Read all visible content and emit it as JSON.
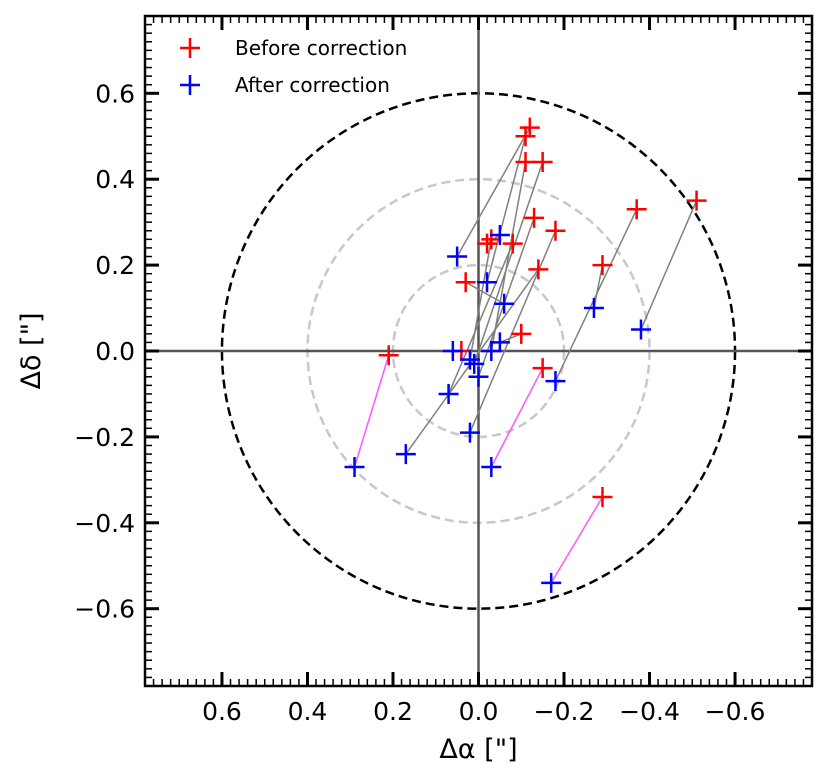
{
  "chart_data": {
    "type": "scatter",
    "xlabel": "Δα [\"]",
    "ylabel": "Δδ [\"]",
    "x_inverted": true,
    "xlim": [
      0.78,
      -0.78
    ],
    "ylim": [
      -0.78,
      0.78
    ],
    "x_ticks": [
      {
        "value": 0.6,
        "label": "0.6"
      },
      {
        "value": 0.4,
        "label": "0.4"
      },
      {
        "value": 0.2,
        "label": "0.2"
      },
      {
        "value": 0.0,
        "label": "0.0"
      },
      {
        "value": -0.2,
        "label": "−0.2"
      },
      {
        "value": -0.4,
        "label": "−0.4"
      },
      {
        "value": -0.6,
        "label": "−0.6"
      }
    ],
    "y_ticks": [
      {
        "value": 0.6,
        "label": "0.6"
      },
      {
        "value": 0.4,
        "label": "0.4"
      },
      {
        "value": 0.2,
        "label": "0.2"
      },
      {
        "value": 0.0,
        "label": "0.0"
      },
      {
        "value": -0.2,
        "label": "−0.2"
      },
      {
        "value": -0.4,
        "label": "−0.4"
      },
      {
        "value": -0.6,
        "label": "−0.6"
      }
    ],
    "circles": [
      {
        "radius": 0.6,
        "color": "#000000",
        "style": "dashed"
      },
      {
        "radius": 0.4,
        "color": "#c8c8c8",
        "style": "dashed"
      },
      {
        "radius": 0.2,
        "color": "#c8c8c8",
        "style": "dashed"
      }
    ],
    "legend": [
      {
        "label": "Before correction",
        "color": "#ff0000"
      },
      {
        "label": "After correction",
        "color": "#0000ff"
      }
    ],
    "series": [
      {
        "name": "Before correction",
        "color": "#ff0000",
        "points": [
          {
            "x": -0.12,
            "y": 0.52
          },
          {
            "x": -0.11,
            "y": 0.5
          },
          {
            "x": -0.11,
            "y": 0.44
          },
          {
            "x": -0.15,
            "y": 0.44
          },
          {
            "x": -0.13,
            "y": 0.31
          },
          {
            "x": -0.18,
            "y": 0.28
          },
          {
            "x": -0.14,
            "y": 0.19
          },
          {
            "x": -0.08,
            "y": 0.25
          },
          {
            "x": -0.03,
            "y": 0.26
          },
          {
            "x": -0.02,
            "y": 0.25
          },
          {
            "x": 0.03,
            "y": 0.16
          },
          {
            "x": -0.1,
            "y": 0.04
          },
          {
            "x": 0.04,
            "y": 0.0
          },
          {
            "x": -0.15,
            "y": -0.04
          },
          {
            "x": 0.21,
            "y": -0.01
          },
          {
            "x": -0.37,
            "y": 0.33
          },
          {
            "x": -0.51,
            "y": 0.35
          },
          {
            "x": -0.29,
            "y": 0.2
          },
          {
            "x": -0.29,
            "y": -0.34
          }
        ]
      },
      {
        "name": "After correction",
        "color": "#0000ff",
        "points": [
          {
            "x": 0.05,
            "y": 0.22
          },
          {
            "x": -0.05,
            "y": 0.27
          },
          {
            "x": -0.02,
            "y": 0.16
          },
          {
            "x": -0.06,
            "y": 0.11
          },
          {
            "x": -0.05,
            "y": 0.02
          },
          {
            "x": -0.03,
            "y": 0.0
          },
          {
            "x": 0.06,
            "y": 0.0
          },
          {
            "x": 0.02,
            "y": -0.02
          },
          {
            "x": 0.01,
            "y": -0.03
          },
          {
            "x": 0.0,
            "y": -0.06
          },
          {
            "x": 0.07,
            "y": -0.1
          },
          {
            "x": 0.02,
            "y": -0.19
          },
          {
            "x": -0.03,
            "y": -0.27
          },
          {
            "x": 0.17,
            "y": -0.24
          },
          {
            "x": 0.29,
            "y": -0.27
          },
          {
            "x": -0.18,
            "y": -0.07
          },
          {
            "x": -0.27,
            "y": 0.1
          },
          {
            "x": -0.38,
            "y": 0.05
          },
          {
            "x": -0.17,
            "y": -0.54
          }
        ]
      }
    ],
    "connectors": [
      {
        "from": [
          -0.12,
          0.52
        ],
        "to": [
          0.05,
          0.22
        ],
        "color": "#808080"
      },
      {
        "from": [
          -0.11,
          0.5
        ],
        "to": [
          -0.02,
          0.16
        ],
        "color": "#808080"
      },
      {
        "from": [
          -0.11,
          0.44
        ],
        "to": [
          -0.03,
          0.0
        ],
        "color": "#808080"
      },
      {
        "from": [
          -0.15,
          0.44
        ],
        "to": [
          0.01,
          -0.03
        ],
        "color": "#808080"
      },
      {
        "from": [
          -0.13,
          0.31
        ],
        "to": [
          0.0,
          -0.06
        ],
        "color": "#808080"
      },
      {
        "from": [
          -0.18,
          0.28
        ],
        "to": [
          0.02,
          -0.19
        ],
        "color": "#808080"
      },
      {
        "from": [
          -0.14,
          0.19
        ],
        "to": [
          0.17,
          -0.24
        ],
        "color": "#808080"
      },
      {
        "from": [
          -0.08,
          0.25
        ],
        "to": [
          0.07,
          -0.1
        ],
        "color": "#808080"
      },
      {
        "from": [
          -0.03,
          0.26
        ],
        "to": [
          0.02,
          -0.02
        ],
        "color": "#808080"
      },
      {
        "from": [
          -0.02,
          0.25
        ],
        "to": [
          -0.05,
          0.27
        ],
        "color": "#808080"
      },
      {
        "from": [
          0.03,
          0.16
        ],
        "to": [
          -0.06,
          0.11
        ],
        "color": "#808080"
      },
      {
        "from": [
          -0.1,
          0.04
        ],
        "to": [
          -0.05,
          0.02
        ],
        "color": "#808080"
      },
      {
        "from": [
          0.04,
          0.0
        ],
        "to": [
          0.06,
          0.0
        ],
        "color": "#808080"
      },
      {
        "from": [
          -0.37,
          0.33
        ],
        "to": [
          -0.18,
          -0.07
        ],
        "color": "#808080"
      },
      {
        "from": [
          -0.51,
          0.35
        ],
        "to": [
          -0.38,
          0.05
        ],
        "color": "#808080"
      },
      {
        "from": [
          -0.29,
          0.2
        ],
        "to": [
          -0.27,
          0.1
        ],
        "color": "#808080"
      },
      {
        "from": [
          0.21,
          -0.01
        ],
        "to": [
          0.29,
          -0.27
        ],
        "color": "#ff55ff"
      },
      {
        "from": [
          -0.15,
          -0.04
        ],
        "to": [
          -0.03,
          -0.27
        ],
        "color": "#ff55ff"
      },
      {
        "from": [
          -0.29,
          -0.34
        ],
        "to": [
          -0.17,
          -0.54
        ],
        "color": "#ff55ff"
      }
    ]
  }
}
